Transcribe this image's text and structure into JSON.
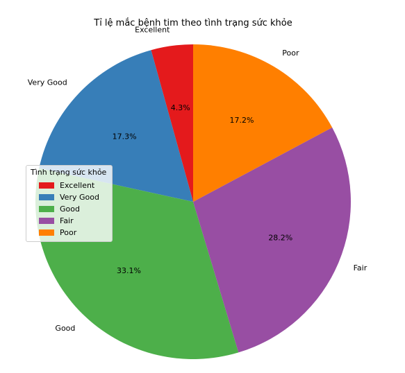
{
  "chart_data": {
    "type": "pie",
    "title": "Tỉ lệ mắc bệnh tim theo tình trạng sức khỏe",
    "categories": [
      "Excellent",
      "Very Good",
      "Good",
      "Fair",
      "Poor"
    ],
    "values": [
      4.3,
      17.3,
      33.1,
      28.2,
      17.2
    ],
    "value_labels": [
      "4.3%",
      "17.3%",
      "33.1%",
      "28.2%",
      "17.2%"
    ],
    "colors": [
      "#e41a1c",
      "#377eb8",
      "#4daf4a",
      "#984ea3",
      "#ff7f00"
    ],
    "start_angle_deg": 90,
    "direction": "counterclockwise",
    "legend": {
      "title": "Tình trạng sức khỏe",
      "placement": "center-left"
    }
  }
}
